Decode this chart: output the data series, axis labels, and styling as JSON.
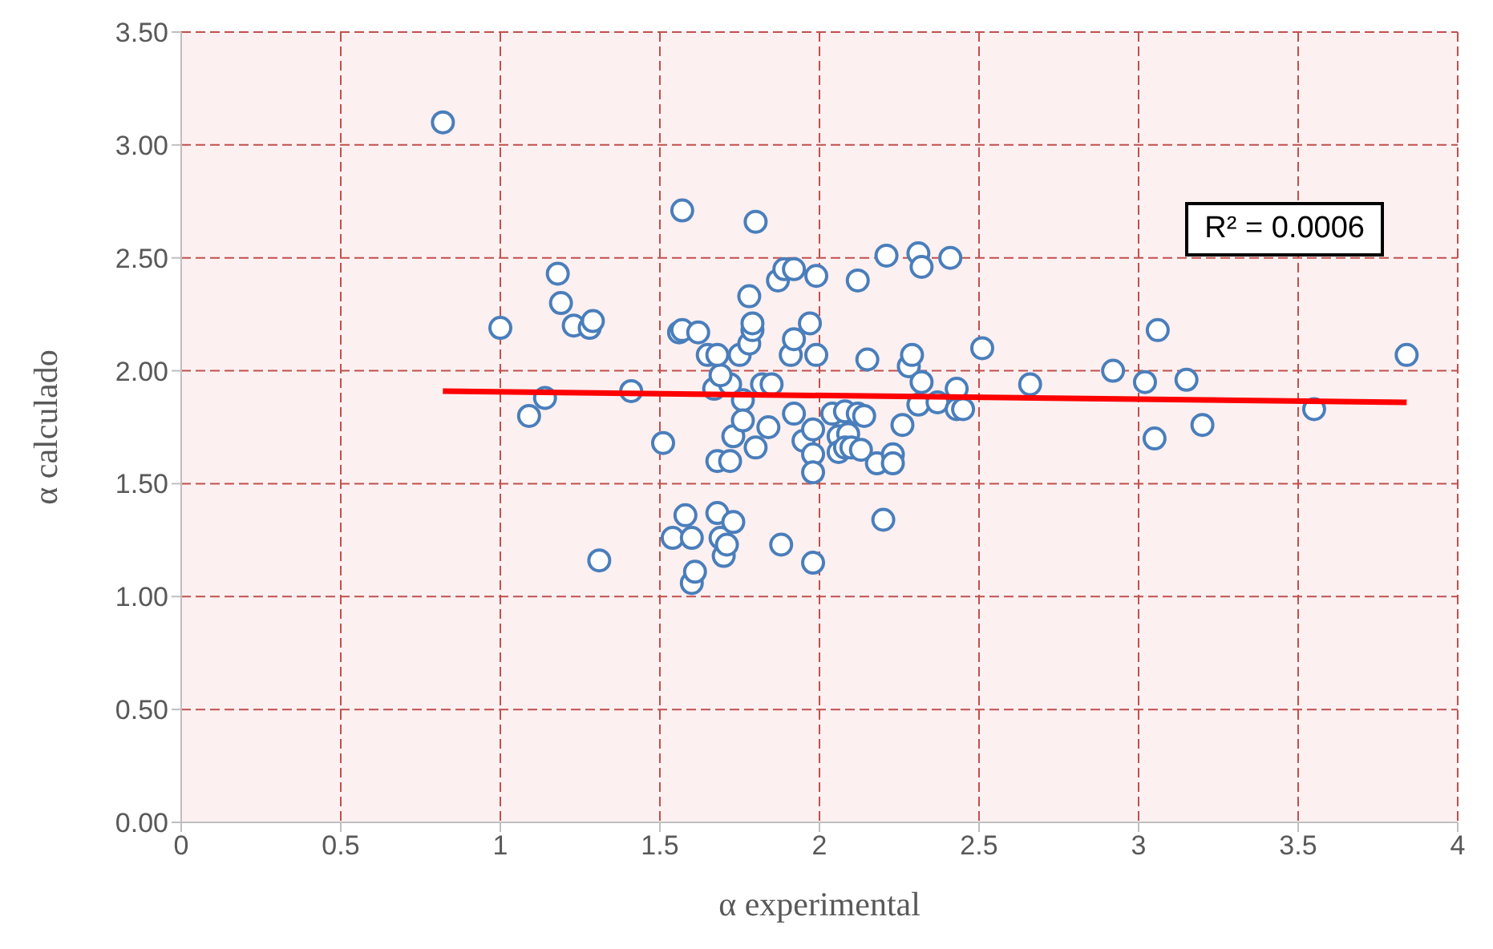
{
  "chart_data": {
    "type": "scatter",
    "xlabel": "α experimental",
    "ylabel": "α  calculado",
    "xlim": [
      0,
      4
    ],
    "xticks": [
      0,
      0.5,
      1,
      1.5,
      2,
      2.5,
      3,
      3.5,
      4
    ],
    "ylim": [
      0,
      3.5
    ],
    "yticks": [
      {
        "value": 0,
        "label": "0.00"
      },
      {
        "value": 0.5,
        "label": "0.50"
      },
      {
        "value": 1,
        "label": "1.00"
      },
      {
        "value": 1.5,
        "label": "1.50"
      },
      {
        "value": 2,
        "label": "2.00"
      },
      {
        "value": 2.5,
        "label": "2.50"
      },
      {
        "value": 3,
        "label": "3.00"
      },
      {
        "value": 3.5,
        "label": "3.50"
      }
    ],
    "grid": true,
    "legend": false,
    "annotations": [
      "R² = 0.0006"
    ],
    "series": [
      {
        "marker": "circle",
        "color": "#4a7ebb",
        "x": [
          0.82,
          1.0,
          1.09,
          1.14,
          1.18,
          1.19,
          1.23,
          1.28,
          1.29,
          1.31,
          1.41,
          1.51,
          1.54,
          1.57,
          1.56,
          1.57,
          1.58,
          1.6,
          1.61,
          1.6,
          1.62,
          1.65,
          1.67,
          1.68,
          1.68,
          1.69,
          1.7,
          1.71,
          1.72,
          1.73,
          1.73,
          1.72,
          1.69,
          1.68,
          1.75,
          1.76,
          1.76,
          1.78,
          1.78,
          1.79,
          1.79,
          1.8,
          1.8,
          1.82,
          1.84,
          1.85,
          1.87,
          1.89,
          1.92,
          1.91,
          1.92,
          1.92,
          1.88,
          1.95,
          1.97,
          1.99,
          1.99,
          1.98,
          1.98,
          1.98,
          1.98,
          2.04,
          2.06,
          2.06,
          2.09,
          2.08,
          2.1,
          2.08,
          2.12,
          2.12,
          2.13,
          2.15,
          2.14,
          2.18,
          2.2,
          2.21,
          2.23,
          2.23,
          2.26,
          2.28,
          2.29,
          2.31,
          2.32,
          2.32,
          2.31,
          2.37,
          2.41,
          2.43,
          2.43,
          2.45,
          2.51,
          2.66,
          2.92,
          3.02,
          3.05,
          3.06,
          3.15,
          3.2,
          3.55,
          3.84
        ],
        "values": [
          3.1,
          2.19,
          1.8,
          1.88,
          2.43,
          2.3,
          2.2,
          2.19,
          2.22,
          1.16,
          1.91,
          1.68,
          1.26,
          2.71,
          2.17,
          2.18,
          1.36,
          1.06,
          1.11,
          1.26,
          2.17,
          2.07,
          1.92,
          1.6,
          1.37,
          1.26,
          1.18,
          1.23,
          1.6,
          1.71,
          1.33,
          1.94,
          1.98,
          2.07,
          2.07,
          1.87,
          1.78,
          2.33,
          2.12,
          2.18,
          2.21,
          2.66,
          1.66,
          1.94,
          1.75,
          1.94,
          2.4,
          2.45,
          2.45,
          2.07,
          2.14,
          1.81,
          1.23,
          1.69,
          2.21,
          2.07,
          2.42,
          1.74,
          1.63,
          1.55,
          1.15,
          1.81,
          1.71,
          1.64,
          1.72,
          1.66,
          1.66,
          1.82,
          1.81,
          2.4,
          1.65,
          2.05,
          1.8,
          1.59,
          1.34,
          2.51,
          1.63,
          1.59,
          1.76,
          2.02,
          2.07,
          2.52,
          2.46,
          1.95,
          1.85,
          1.86,
          2.5,
          1.92,
          1.83,
          1.83,
          2.1,
          1.94,
          2.0,
          1.95,
          1.7,
          2.18,
          1.96,
          1.76,
          1.83,
          2.07
        ]
      },
      {
        "type": "line",
        "marker": "none",
        "color": "#ff0000",
        "x": [
          0.82,
          3.84
        ],
        "values": [
          1.91,
          1.86
        ]
      }
    ]
  }
}
